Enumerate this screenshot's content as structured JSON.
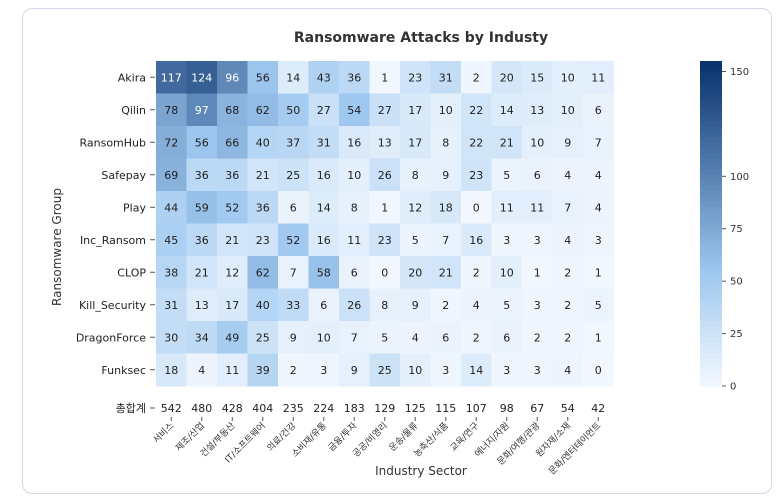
{
  "chart_data": {
    "type": "heatmap",
    "title": "Ransomware Attacks by Industy",
    "xlabel": "Industry Sector",
    "ylabel": "Ransomware Group",
    "x_categories": [
      "서비스",
      "제조/산업",
      "건설/부동산",
      "IT/소프트웨어",
      "의료/건강",
      "소비재/유통",
      "금융/투자",
      "공공/비영리",
      "운송/물류",
      "농축산/식품",
      "교육/연구",
      "에너지/자원",
      "문화/여행/관광",
      "원자재/소재",
      "문화/엔터테이먼트"
    ],
    "y_categories": [
      "Akira",
      "Qilin",
      "RansomHub",
      "Safepay",
      "Play",
      "Inc_Ransom",
      "CLOP",
      "Kill_Security",
      "DragonForce",
      "Funksec"
    ],
    "values": [
      [
        117,
        124,
        96,
        56,
        14,
        43,
        36,
        1,
        23,
        31,
        2,
        20,
        15,
        10,
        11
      ],
      [
        78,
        97,
        68,
        62,
        50,
        27,
        54,
        27,
        17,
        10,
        22,
        14,
        13,
        10,
        6
      ],
      [
        72,
        56,
        66,
        40,
        37,
        31,
        16,
        13,
        17,
        8,
        22,
        21,
        10,
        9,
        7
      ],
      [
        69,
        36,
        36,
        21,
        25,
        16,
        10,
        26,
        8,
        9,
        23,
        5,
        6,
        4,
        4
      ],
      [
        44,
        59,
        52,
        36,
        6,
        14,
        8,
        1,
        12,
        18,
        0,
        11,
        11,
        7,
        4
      ],
      [
        45,
        36,
        21,
        23,
        52,
        16,
        11,
        23,
        5,
        7,
        16,
        3,
        3,
        4,
        3
      ],
      [
        38,
        21,
        12,
        62,
        7,
        58,
        6,
        0,
        20,
        21,
        2,
        10,
        1,
        2,
        1
      ],
      [
        31,
        13,
        17,
        40,
        33,
        6,
        26,
        8,
        9,
        2,
        4,
        5,
        3,
        2,
        5
      ],
      [
        30,
        34,
        49,
        25,
        9,
        10,
        7,
        5,
        4,
        6,
        2,
        6,
        2,
        2,
        1
      ],
      [
        18,
        4,
        11,
        39,
        2,
        3,
        9,
        25,
        10,
        3,
        14,
        3,
        3,
        4,
        0
      ]
    ],
    "total_label": "총합계",
    "totals": [
      542,
      480,
      428,
      404,
      235,
      224,
      183,
      129,
      125,
      115,
      107,
      98,
      67,
      54,
      42
    ],
    "color_range": [
      0,
      155
    ],
    "colorbar_ticks": [
      0,
      25,
      50,
      75,
      100,
      150
    ],
    "colormap": {
      "low": "#f3f8fe",
      "mid": "#9ec8ef",
      "high": "#08306b"
    },
    "grid": false,
    "colorbar_position": "right"
  }
}
